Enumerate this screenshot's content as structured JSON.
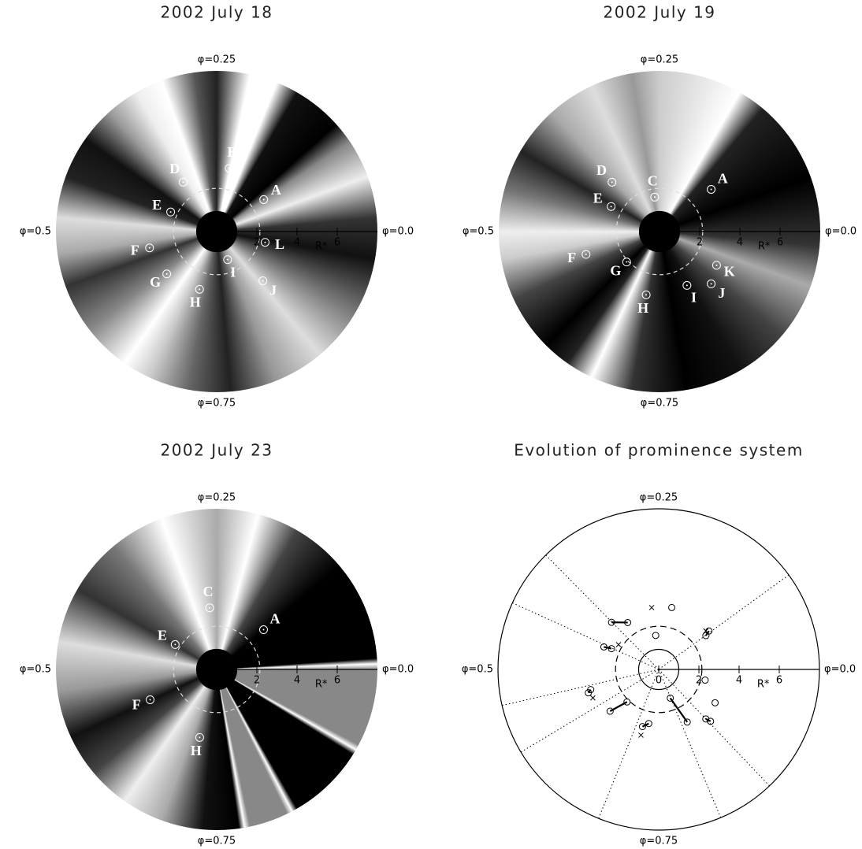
{
  "chart_data": [
    {
      "type": "polar",
      "title": "2002 July 18",
      "phase_ticks": [
        {
          "value": 0,
          "label": "φ=0.0"
        },
        {
          "value": 0.25,
          "label": "φ=0.25"
        },
        {
          "value": 0.5,
          "label": "φ=0.5"
        },
        {
          "value": 0.75,
          "label": "φ=0.75"
        }
      ],
      "rlim": [
        0,
        8
      ],
      "rticks": [
        2,
        4,
        6
      ],
      "r_label": "R*",
      "star_radius": 1,
      "corotation_radius": 2.15,
      "points": [
        {
          "label": "A",
          "phase": 0.095,
          "r": 2.83
        },
        {
          "label": "B",
          "phase": 0.219,
          "r": 3.21
        },
        {
          "label": "D",
          "phase": 0.345,
          "r": 2.97
        },
        {
          "label": "E",
          "phase": 0.436,
          "r": 2.49
        },
        {
          "label": "F",
          "phase": 0.538,
          "r": 3.44
        },
        {
          "label": "G",
          "phase": 0.612,
          "r": 3.26
        },
        {
          "label": "H",
          "phase": 0.704,
          "r": 3.0
        },
        {
          "label": "I",
          "phase": 0.809,
          "r": 1.5
        },
        {
          "label": "J",
          "phase": 0.87,
          "r": 3.36
        },
        {
          "label": "L",
          "phase": 0.965,
          "r": 2.47
        }
      ]
    },
    {
      "type": "polar",
      "title": "2002 July 19",
      "phase_ticks": [
        {
          "value": 0,
          "label": "φ=0.0"
        },
        {
          "value": 0.25,
          "label": "φ=0.25"
        },
        {
          "value": 0.5,
          "label": "φ=0.5"
        },
        {
          "value": 0.75,
          "label": "φ=0.75"
        }
      ],
      "rlim": [
        0,
        8
      ],
      "rticks": [
        2,
        4,
        6
      ],
      "r_label": "R*",
      "star_radius": 1,
      "corotation_radius": 2.15,
      "points": [
        {
          "label": "A",
          "phase": 0.109,
          "r": 3.32
        },
        {
          "label": "C",
          "phase": 0.272,
          "r": 1.73
        },
        {
          "label": "D",
          "phase": 0.372,
          "r": 3.41
        },
        {
          "label": "E",
          "phase": 0.424,
          "r": 2.71
        },
        {
          "label": "F",
          "phase": 0.548,
          "r": 3.83
        },
        {
          "label": "G",
          "phase": 0.619,
          "r": 2.23
        },
        {
          "label": "H",
          "phase": 0.717,
          "r": 3.22
        },
        {
          "label": "I",
          "phase": 0.825,
          "r": 3.01
        },
        {
          "label": "J",
          "phase": 0.874,
          "r": 3.66
        },
        {
          "label": "K",
          "phase": 0.915,
          "r": 3.3
        }
      ]
    },
    {
      "type": "polar",
      "title": "2002 July 23",
      "phase_ticks": [
        {
          "value": 0,
          "label": "φ=0.0"
        },
        {
          "value": 0.25,
          "label": "φ=0.25"
        },
        {
          "value": 0.5,
          "label": "φ=0.5"
        },
        {
          "value": 0.75,
          "label": "φ=0.75"
        }
      ],
      "rlim": [
        0,
        8
      ],
      "rticks": [
        2,
        4,
        6
      ],
      "r_label": "R*",
      "star_radius": 1,
      "corotation_radius": 2.15,
      "points": [
        {
          "label": "A",
          "phase": 0.112,
          "r": 3.06
        },
        {
          "label": "C",
          "phase": 0.268,
          "r": 3.09
        },
        {
          "label": "E",
          "phase": 0.414,
          "r": 2.41
        },
        {
          "label": "F",
          "phase": 0.568,
          "r": 3.64
        },
        {
          "label": "H",
          "phase": 0.711,
          "r": 3.49
        }
      ]
    },
    {
      "type": "evolution",
      "title": "Evolution of prominence system",
      "phase_ticks": [
        {
          "value": 0,
          "label": "φ=0.0"
        },
        {
          "value": 0.25,
          "label": "φ=0.25"
        },
        {
          "value": 0.5,
          "label": "φ=0.5"
        },
        {
          "value": 0.75,
          "label": "φ=0.75"
        }
      ],
      "rlim": [
        0,
        8
      ],
      "rticks": [
        0,
        2,
        4,
        6
      ],
      "r_label": "R*",
      "star_radius": 1,
      "corotation_radius": 2.15,
      "guide_phases": [
        0.1,
        0.374,
        0.432,
        0.536,
        0.586,
        0.689,
        0.813,
        0.871
      ],
      "tracks": [
        [
          {
            "phase": 0.104,
            "r": 3.15
          },
          {
            "phase": 0.099,
            "r": 2.89
          }
        ],
        [
          {
            "phase": 0.217,
            "r": 3.15
          }
        ],
        [
          {
            "phase": 0.264,
            "r": 1.7
          }
        ],
        [
          {
            "phase": 0.375,
            "r": 3.32
          },
          {
            "phase": 0.343,
            "r": 2.8
          }
        ],
        [
          {
            "phase": 0.438,
            "r": 2.95
          },
          {
            "phase": 0.434,
            "r": 2.57
          }
        ],
        [
          {
            "phase": 0.546,
            "r": 3.53
          },
          {
            "phase": 0.551,
            "r": 3.69
          }
        ],
        [
          {
            "phase": 0.613,
            "r": 3.19
          },
          {
            "phase": 0.627,
            "r": 2.26
          }
        ],
        [
          {
            "phase": 0.706,
            "r": 2.96
          },
          {
            "phase": 0.721,
            "r": 2.74
          }
        ],
        [
          {
            "phase": 0.811,
            "r": 1.54
          },
          {
            "phase": 0.829,
            "r": 2.98
          }
        ],
        [
          {
            "phase": 0.964,
            "r": 2.37
          }
        ],
        [
          {
            "phase": 0.915,
            "r": 3.26
          }
        ],
        [
          {
            "phase": 0.871,
            "r": 3.4
          },
          {
            "phase": 0.875,
            "r": 3.65
          }
        ]
      ],
      "crosses": [
        {
          "phase": 0.268,
          "r": 3.1
        },
        {
          "phase": 0.412,
          "r": 2.35
        },
        {
          "phase": 0.565,
          "r": 3.57
        },
        {
          "phase": 0.708,
          "r": 3.39
        },
        {
          "phase": 0.109,
          "r": 3.03
        }
      ]
    }
  ]
}
